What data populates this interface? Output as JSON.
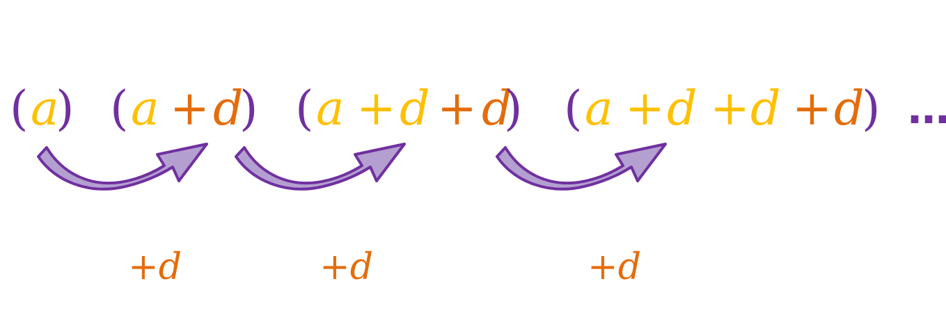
{
  "colors": {
    "bracket": "#7030A0",
    "a_term": "#FFC000",
    "new_d": "#E46C0A",
    "old_d": "#FFC000",
    "arrow_fill": "#B4A0D0",
    "arrow_stroke": "#7030A0"
  },
  "sequence": {
    "terms": [
      {
        "open": "(",
        "parts": [
          {
            "text": "a",
            "role": "a_term"
          }
        ],
        "close": ")"
      },
      {
        "open": "(",
        "parts": [
          {
            "text": "a",
            "role": "a_term"
          },
          {
            "text": "+",
            "role": "new_d"
          },
          {
            "text": "d",
            "role": "new_d"
          }
        ],
        "close": ")"
      },
      {
        "open": "(",
        "parts": [
          {
            "text": "a",
            "role": "a_term"
          },
          {
            "text": "+",
            "role": "old_d"
          },
          {
            "text": "d",
            "role": "old_d"
          },
          {
            "text": "+",
            "role": "new_d"
          },
          {
            "text": "d",
            "role": "new_d"
          }
        ],
        "close": ")"
      },
      {
        "open": "(",
        "parts": [
          {
            "text": "a",
            "role": "a_term"
          },
          {
            "text": "+",
            "role": "old_d"
          },
          {
            "text": "d",
            "role": "old_d"
          },
          {
            "text": "+",
            "role": "old_d"
          },
          {
            "text": "d",
            "role": "old_d"
          },
          {
            "text": "+",
            "role": "new_d"
          },
          {
            "text": "d",
            "role": "new_d"
          }
        ],
        "close": ")"
      }
    ],
    "ellipsis": "…"
  },
  "steps": [
    {
      "label_plus": "+",
      "label_d": "d"
    },
    {
      "label_plus": "+",
      "label_d": "d"
    },
    {
      "label_plus": "+",
      "label_d": "d"
    }
  ]
}
